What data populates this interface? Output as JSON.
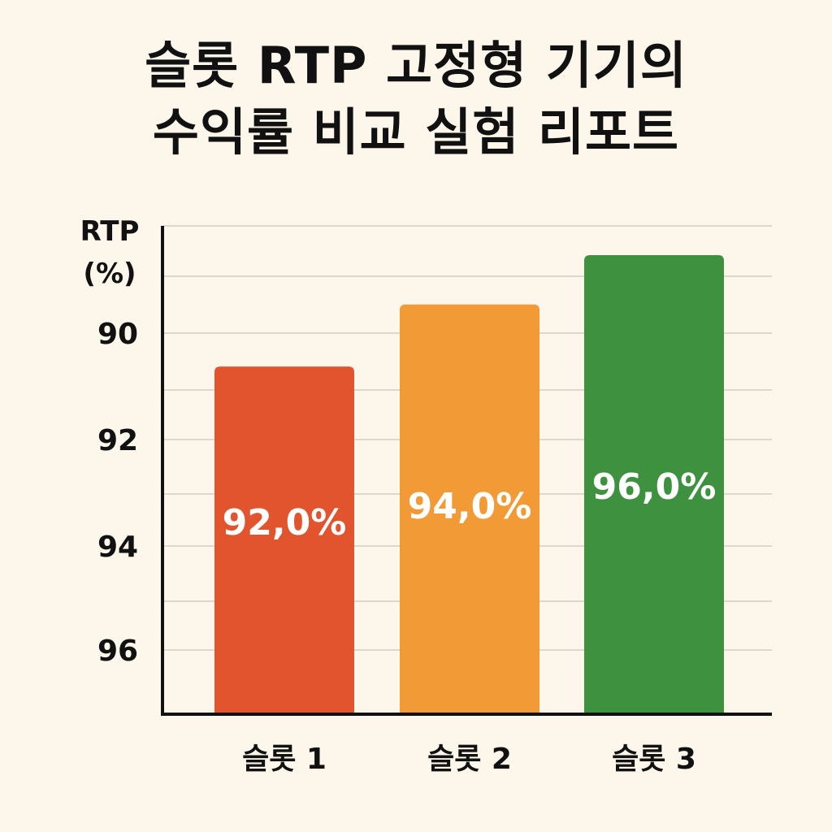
{
  "title": {
    "line1": "슬롯 RTP 고정형 기기의",
    "line2": "수익률 비교 실험 리포트"
  },
  "chart_data": {
    "type": "bar",
    "ylabel_line1": "RTP",
    "ylabel_line2": "(%)",
    "categories": [
      "슬롯 1",
      "슬롯 2",
      "슬롯 3"
    ],
    "values": [
      92.0,
      94.0,
      96.0
    ],
    "value_labels": [
      "92,0%",
      "94,0%",
      "96,0%"
    ],
    "colors": [
      "#e2542d",
      "#f29a36",
      "#3d913f"
    ],
    "yticks": [
      "90",
      "92",
      "94",
      "96"
    ],
    "grid": true,
    "bar_heights_percent_of_plot": [
      71.2,
      83.9,
      94.0
    ]
  }
}
